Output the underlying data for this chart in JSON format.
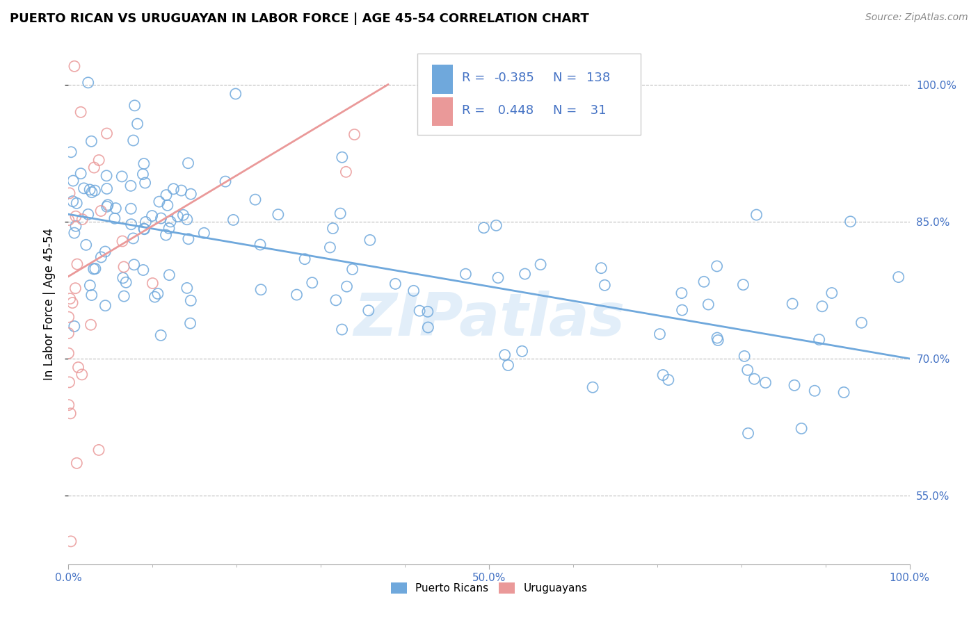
{
  "title": "PUERTO RICAN VS URUGUAYAN IN LABOR FORCE | AGE 45-54 CORRELATION CHART",
  "source_text": "Source: ZipAtlas.com",
  "ylabel": "In Labor Force | Age 45-54",
  "xlim": [
    0.0,
    1.0
  ],
  "ylim": [
    0.475,
    1.045
  ],
  "y_ticks": [
    0.55,
    0.7,
    0.85,
    1.0
  ],
  "y_tick_labels": [
    "55.0%",
    "70.0%",
    "85.0%",
    "100.0%"
  ],
  "blue_color": "#6fa8dc",
  "pink_color": "#ea9999",
  "blue_R": -0.385,
  "blue_N": 138,
  "pink_R": 0.448,
  "pink_N": 31,
  "watermark": "ZIPatlas",
  "label_color": "#4472c4",
  "blue_trend_x": [
    0.0,
    1.0
  ],
  "blue_trend_y": [
    0.858,
    0.7
  ],
  "pink_trend_x": [
    0.0,
    0.38
  ],
  "pink_trend_y": [
    0.79,
    1.0
  ]
}
